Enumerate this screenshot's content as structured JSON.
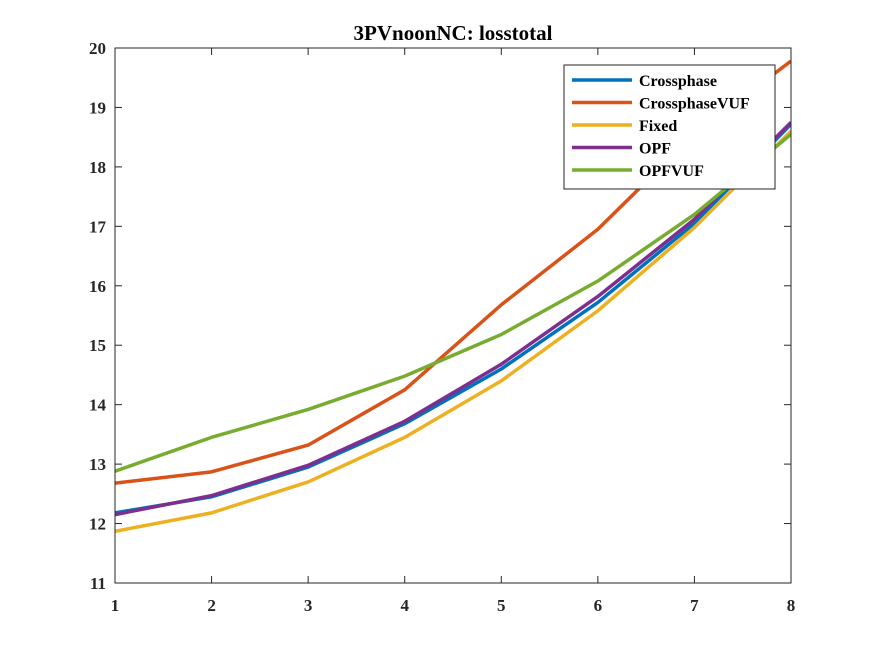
{
  "chart_data": {
    "type": "line",
    "title": "3PVnoonNC: losstotal",
    "xlabel": "",
    "ylabel": "",
    "x": [
      1,
      2,
      3,
      4,
      5,
      6,
      7,
      8
    ],
    "xlim": [
      1,
      8
    ],
    "ylim": [
      11,
      20
    ],
    "xticks": [
      "1",
      "2",
      "3",
      "4",
      "5",
      "6",
      "7",
      "8"
    ],
    "yticks": [
      "11",
      "12",
      "13",
      "14",
      "15",
      "16",
      "17",
      "18",
      "19",
      "20"
    ],
    "grid": false,
    "legend_position": "top-right",
    "series": [
      {
        "name": "Crossphase",
        "color": "#0072BD",
        "values": [
          12.18,
          12.45,
          12.95,
          13.68,
          14.6,
          15.72,
          17.05,
          18.72
        ]
      },
      {
        "name": "CrossphaseVUF",
        "color": "#D95319",
        "values": [
          12.68,
          12.87,
          13.32,
          14.25,
          15.68,
          16.95,
          18.55,
          19.78
        ]
      },
      {
        "name": "Fixed",
        "color": "#EDB120",
        "values": [
          11.87,
          12.18,
          12.7,
          13.45,
          14.4,
          15.58,
          16.98,
          18.6
        ]
      },
      {
        "name": "OPF",
        "color": "#7E2F8E",
        "values": [
          12.15,
          12.47,
          12.98,
          13.72,
          14.68,
          15.82,
          17.12,
          18.75
        ]
      },
      {
        "name": "OPFVUF",
        "color": "#77AC30",
        "values": [
          12.88,
          13.45,
          13.92,
          14.48,
          15.18,
          16.08,
          17.2,
          18.55
        ]
      }
    ]
  }
}
